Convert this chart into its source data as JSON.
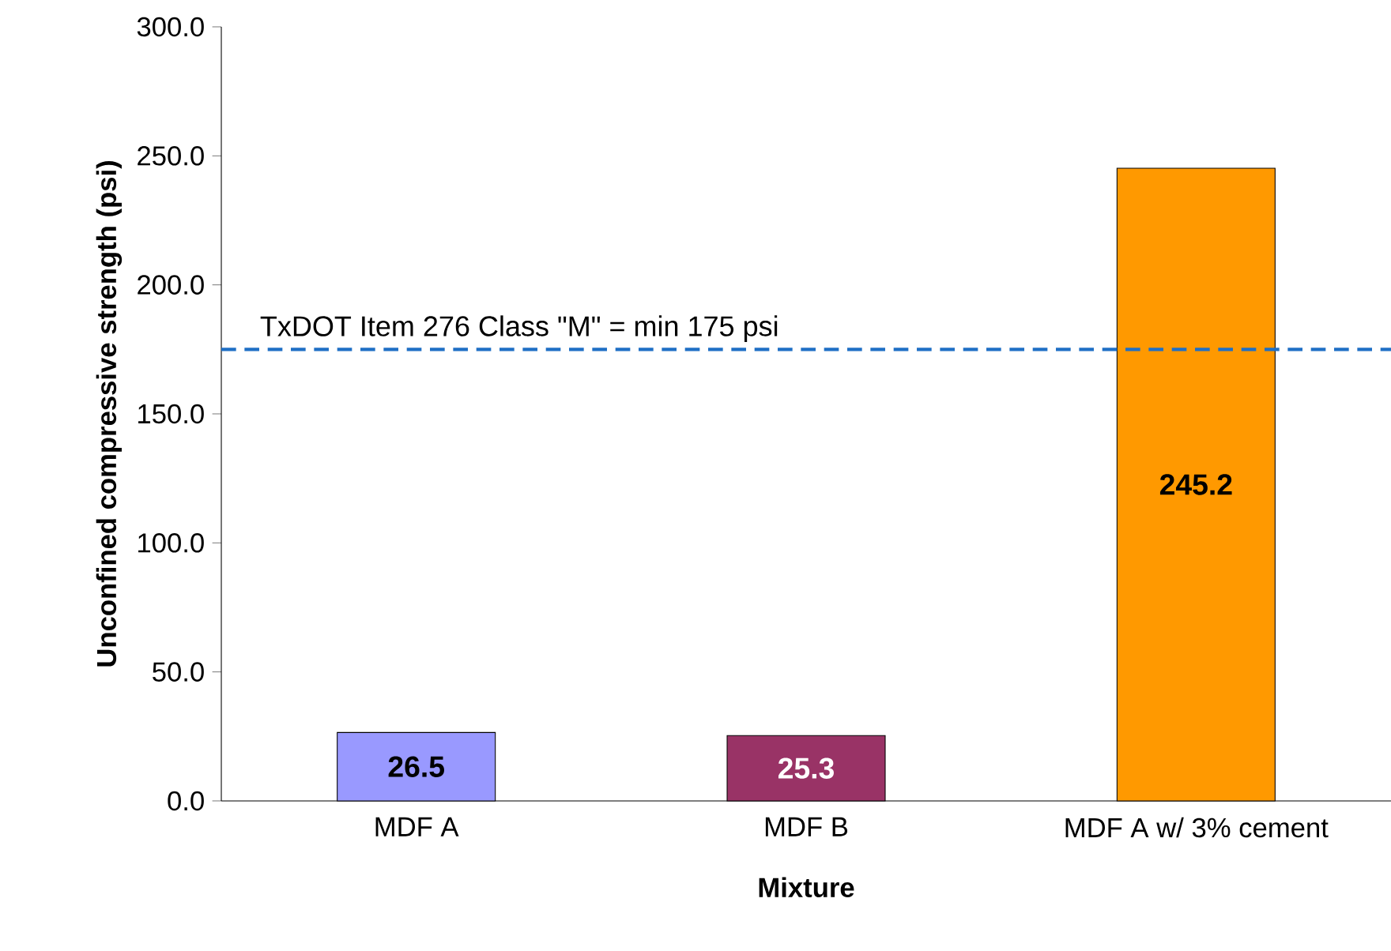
{
  "chart_data": {
    "type": "bar",
    "xlabel": "Mixture",
    "ylabel": "Unconfined compressive strength (psi)",
    "categories": [
      "MDF A",
      "MDF B",
      "MDF A w/ 3% cement"
    ],
    "values": [
      26.5,
      25.3,
      245.2
    ],
    "colors": [
      "#9999ff",
      "#993366",
      "#ff9900"
    ],
    "value_labels": [
      "26.5",
      "25.3",
      "245.2"
    ],
    "ylim": [
      0,
      300
    ],
    "yticks": [
      {
        "value": 0,
        "label": "0.0"
      },
      {
        "value": 50,
        "label": "50.0"
      },
      {
        "value": 100,
        "label": "100.0"
      },
      {
        "value": 150,
        "label": "150.0"
      },
      {
        "value": 200,
        "label": "200.0"
      },
      {
        "value": 250,
        "label": "250.0"
      },
      {
        "value": 300,
        "label": "300.0"
      }
    ],
    "ref_lines": [
      {
        "axis": "y",
        "value": 175,
        "label": "TxDOT Item 276 Class \"M\" = min 175 psi",
        "color": "#1f6fc5",
        "line_style": "dashed"
      }
    ],
    "tick_labels": [
      "x",
      "y"
    ]
  }
}
